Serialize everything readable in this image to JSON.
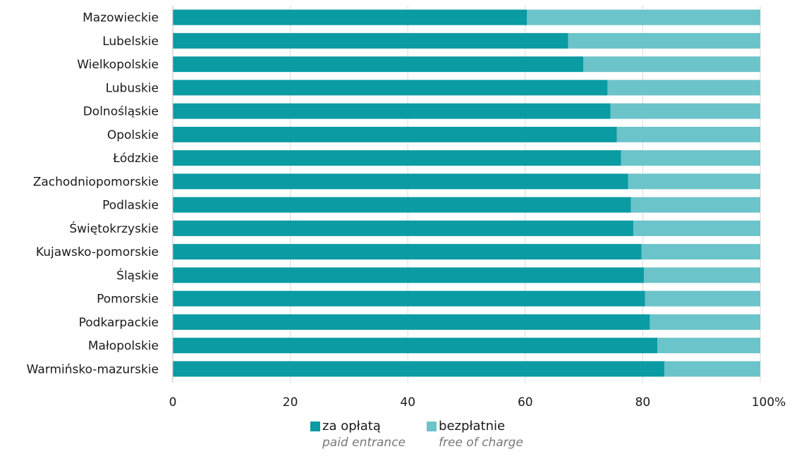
{
  "chart_data": {
    "type": "bar",
    "orientation": "horizontal",
    "stacked": true,
    "categories": [
      "Mazowieckie",
      "Lubelskie",
      "Wielkopolskie",
      "Lubuskie",
      "Dolnośląskie",
      "Opolskie",
      "Łódzkie",
      "Zachodniopomorskie",
      "Podlaskie",
      "Świętokrzyskie",
      "Kujawsko-pomorskie",
      "Śląskie",
      "Pomorskie",
      "Podkarpackie",
      "Małopolskie",
      "Warmińsko-mazurskie"
    ],
    "series": [
      {
        "name": "za opłatą",
        "name_en": "paid entrance",
        "color": "#0a9ba3",
        "values": [
          60.3,
          67.3,
          69.9,
          74.0,
          74.5,
          75.6,
          76.3,
          77.5,
          78.0,
          78.4,
          79.8,
          80.2,
          80.4,
          81.2,
          82.5,
          83.7
        ]
      },
      {
        "name": "bezpłatnie",
        "name_en": "free of charge",
        "color": "#6bc4c9",
        "values": [
          39.7,
          32.7,
          30.1,
          26.0,
          25.5,
          24.4,
          23.7,
          22.5,
          22.0,
          21.6,
          20.2,
          19.8,
          19.6,
          18.8,
          17.5,
          16.3
        ]
      }
    ],
    "xlim": [
      0,
      100
    ],
    "xticks": [
      "0",
      "20",
      "40",
      "60",
      "80",
      "100%"
    ],
    "grid": true,
    "legend_position": "bottom"
  }
}
